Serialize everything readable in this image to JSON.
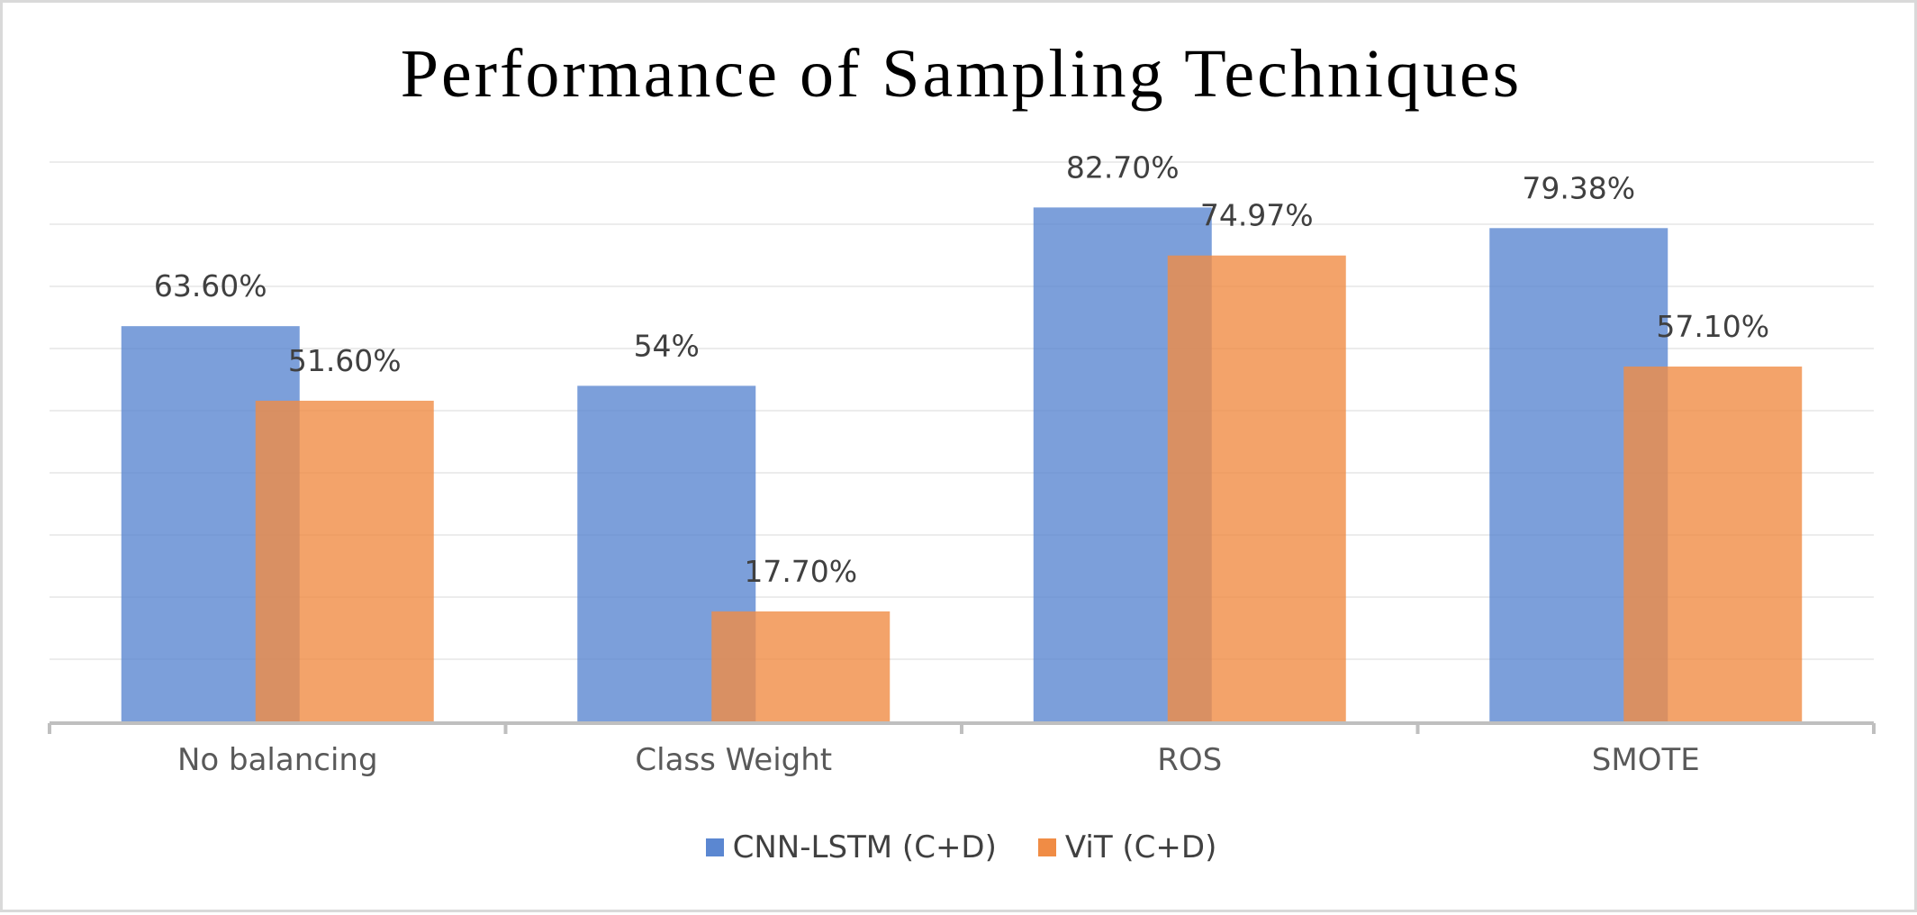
{
  "chart_data": {
    "type": "bar",
    "title": "Performance of Sampling Techniques",
    "xlabel": "",
    "ylabel": "",
    "ylim": [
      0,
      90
    ],
    "grid": true,
    "legend_position": "bottom",
    "categories": [
      "No balancing",
      "Class Weight",
      "ROS",
      "SMOTE"
    ],
    "series": [
      {
        "name": "CNN-LSTM (C+D)",
        "color": "#5b87d1",
        "values": [
          63.6,
          54,
          82.7,
          79.38
        ],
        "labels": [
          "63.60%",
          "54%",
          "82.70%",
          "79.38%"
        ]
      },
      {
        "name": "ViT (C+D)",
        "color": "#f08c45",
        "values": [
          51.6,
          17.7,
          74.97,
          57.1
        ],
        "labels": [
          "51.60%",
          "17.70%",
          "74.97%",
          "57.10%"
        ]
      }
    ]
  }
}
